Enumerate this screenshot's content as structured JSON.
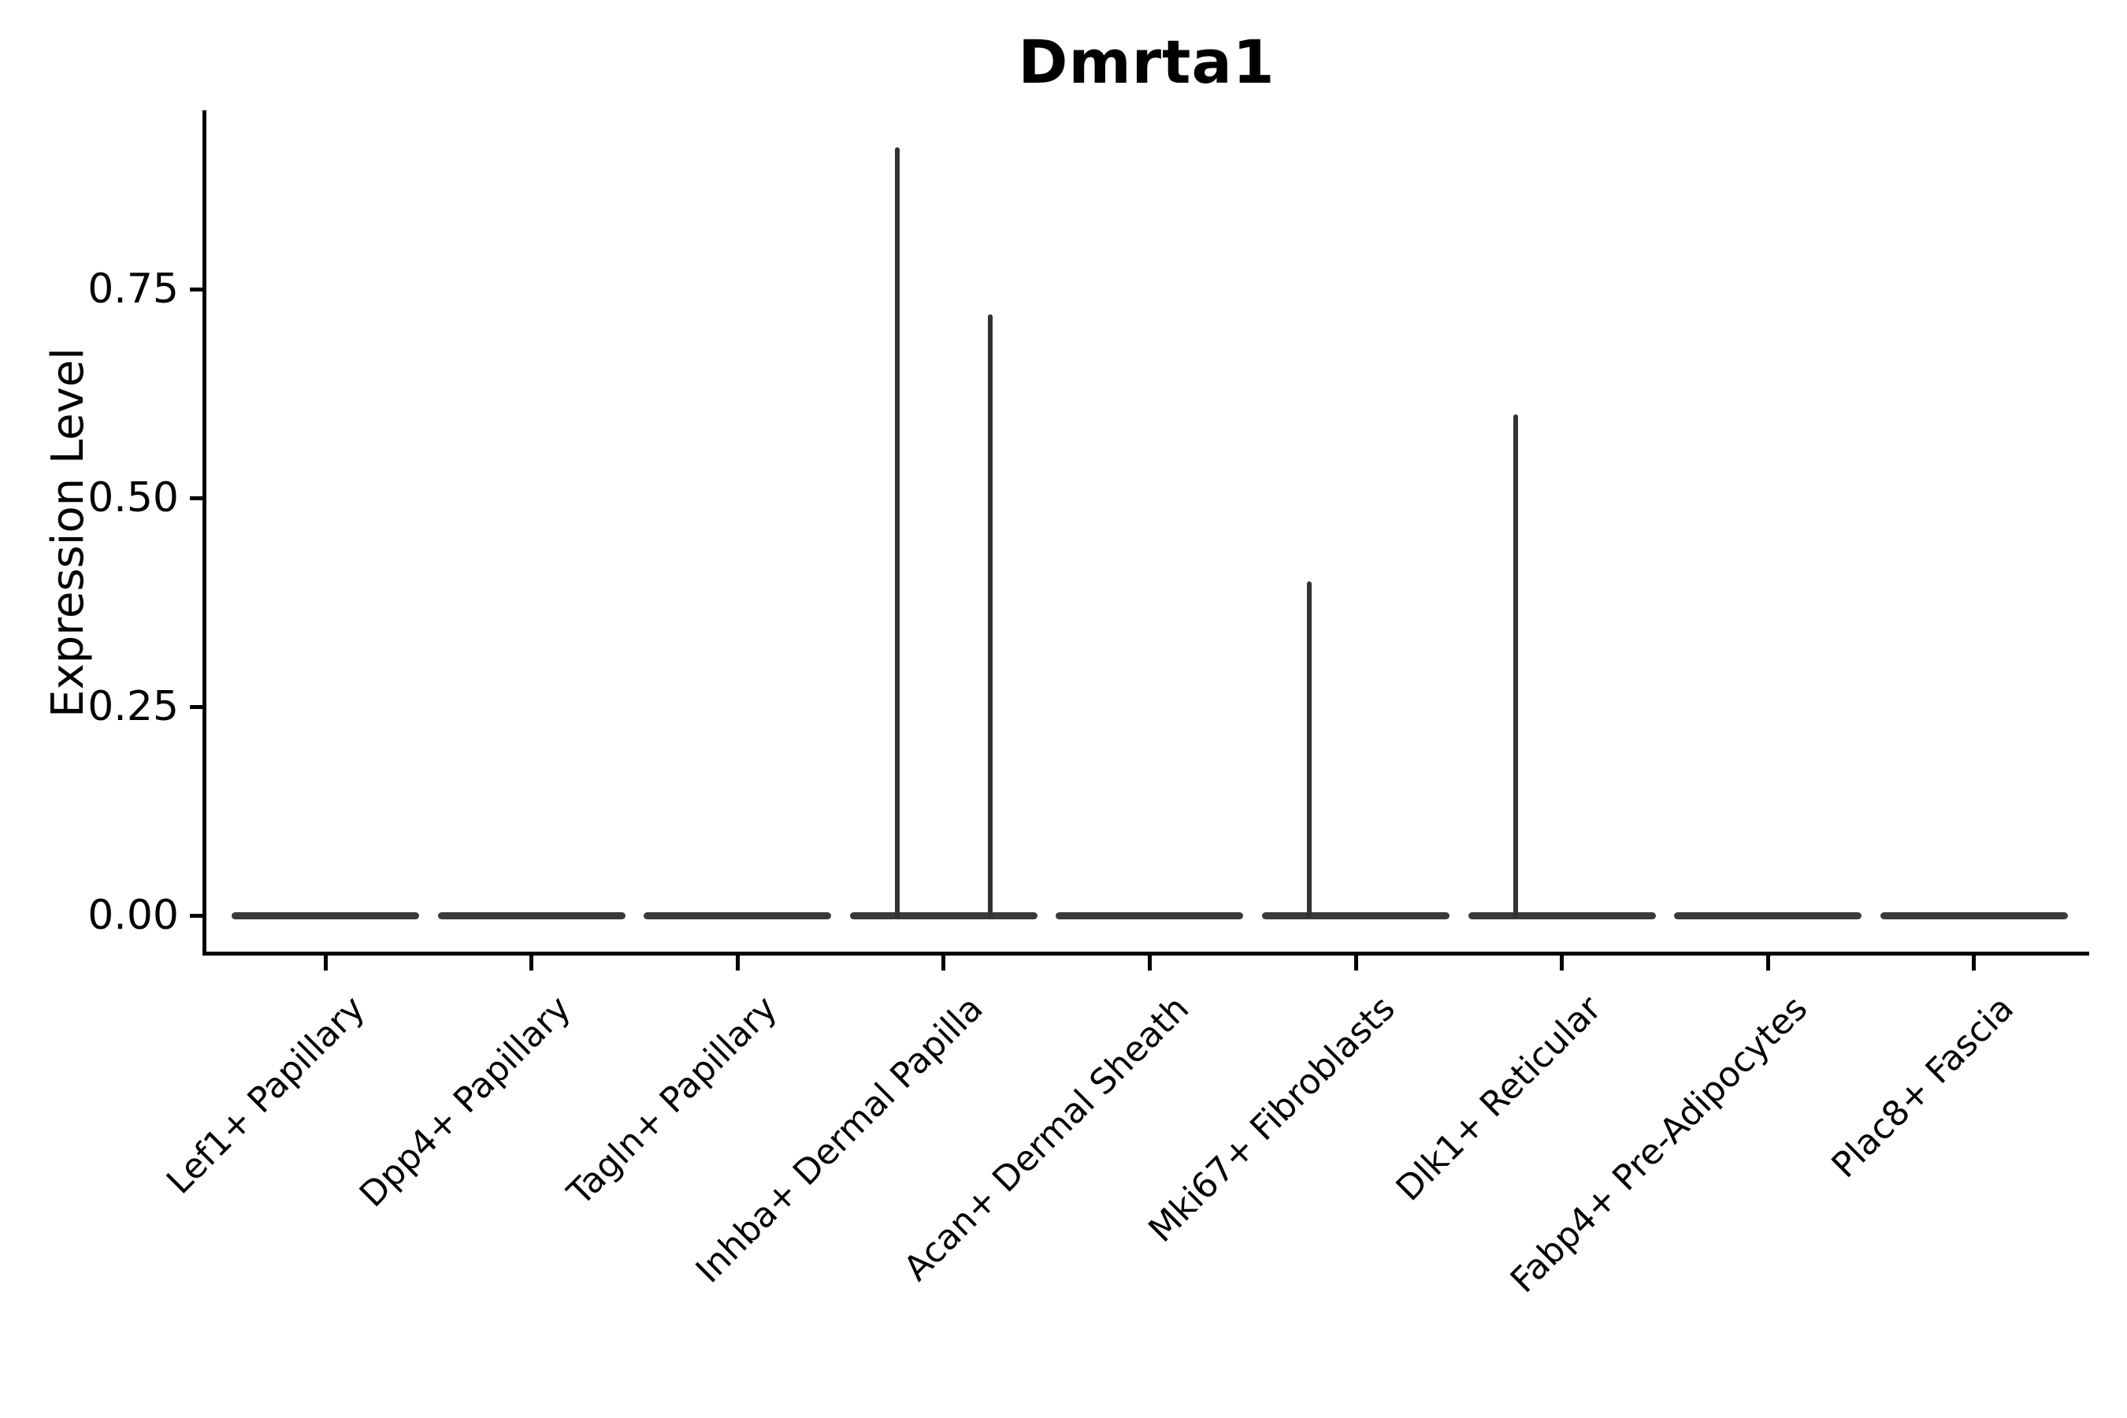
{
  "title": "Dmrta1",
  "y_axis": {
    "label": "Expression Level",
    "tick_labels": [
      "0.00",
      "0.25",
      "0.50",
      "0.75"
    ]
  },
  "colors": {
    "background": "#ffffff",
    "axis": "#000000",
    "text": "#000000",
    "violin_stroke": "#333333"
  },
  "chart_data": {
    "type": "violin",
    "title": "Dmrta1",
    "xlabel": "",
    "ylabel": "Expression Level",
    "ylim": [
      0,
      0.96
    ],
    "yticks": [
      0,
      0.25,
      0.5,
      0.75
    ],
    "ytick_labels": [
      "0.00",
      "0.25",
      "0.50",
      "0.75"
    ],
    "grid": false,
    "legend": null,
    "categories": [
      "Lef1+ Papillary",
      "Dpp4+ Papillary",
      "Tagln+ Papillary",
      "Inhba+ Dermal Papilla",
      "Acan+ Dermal Sheath",
      "Mki67+ Fibroblasts",
      "Dlk1+ Reticular",
      "Fabp4+ Pre-Adipocytes",
      "Plac8+ Fascia"
    ],
    "violins": [
      {
        "category": "Lef1+ Papillary",
        "zero_line": true,
        "spikes": []
      },
      {
        "category": "Dpp4+ Papillary",
        "zero_line": true,
        "spikes": []
      },
      {
        "category": "Tagln+ Papillary",
        "zero_line": true,
        "spikes": []
      },
      {
        "category": "Inhba+ Dermal Papilla",
        "zero_line": true,
        "spikes": [
          {
            "group": "left",
            "max_expression": 0.92
          },
          {
            "group": "right",
            "max_expression": 0.72
          }
        ]
      },
      {
        "category": "Acan+ Dermal Sheath",
        "zero_line": true,
        "spikes": []
      },
      {
        "category": "Mki67+ Fibroblasts",
        "zero_line": true,
        "spikes": [
          {
            "group": "left",
            "max_expression": 0.4
          }
        ]
      },
      {
        "category": "Dlk1+ Reticular",
        "zero_line": true,
        "spikes": [
          {
            "group": "left",
            "max_expression": 0.6
          }
        ]
      },
      {
        "category": "Fabp4+ Pre-Adipocytes",
        "zero_line": true,
        "spikes": []
      },
      {
        "category": "Plac8+ Fascia",
        "zero_line": true,
        "spikes": []
      }
    ]
  }
}
